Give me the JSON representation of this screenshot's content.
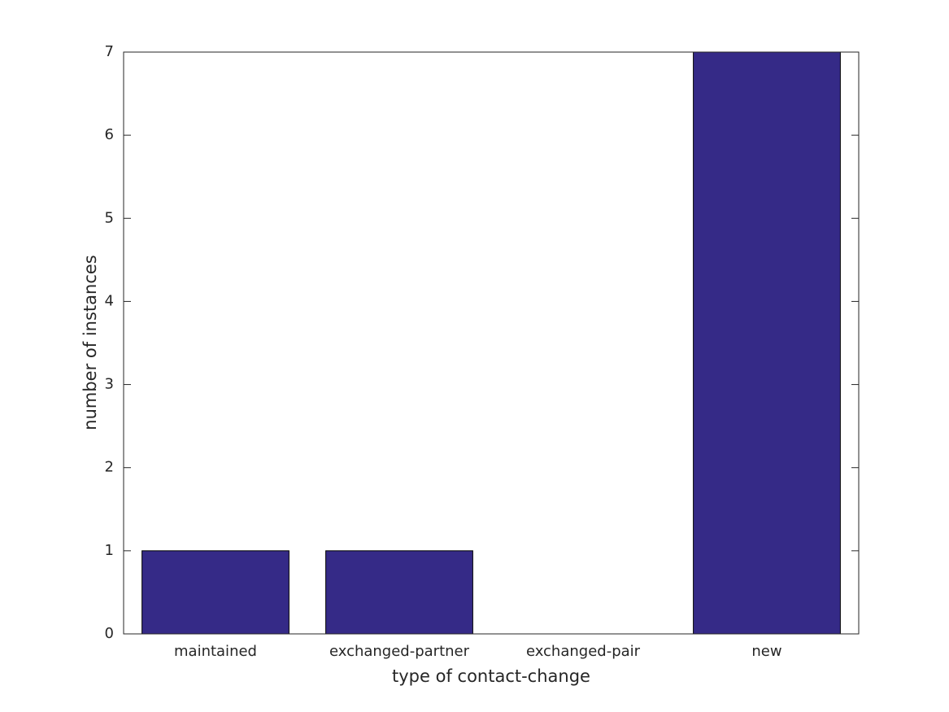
{
  "chart_data": {
    "type": "bar",
    "categories": [
      "maintained",
      "exchanged-partner",
      "exchanged-pair",
      "new"
    ],
    "values": [
      1,
      1,
      0,
      7
    ],
    "color": "#352a87",
    "xlabel": "type of contact-change",
    "ylabel": "number of instances",
    "ylim": [
      0,
      7
    ],
    "yticks": [
      0,
      1,
      2,
      3,
      4,
      5,
      6,
      7
    ],
    "grid": false
  }
}
